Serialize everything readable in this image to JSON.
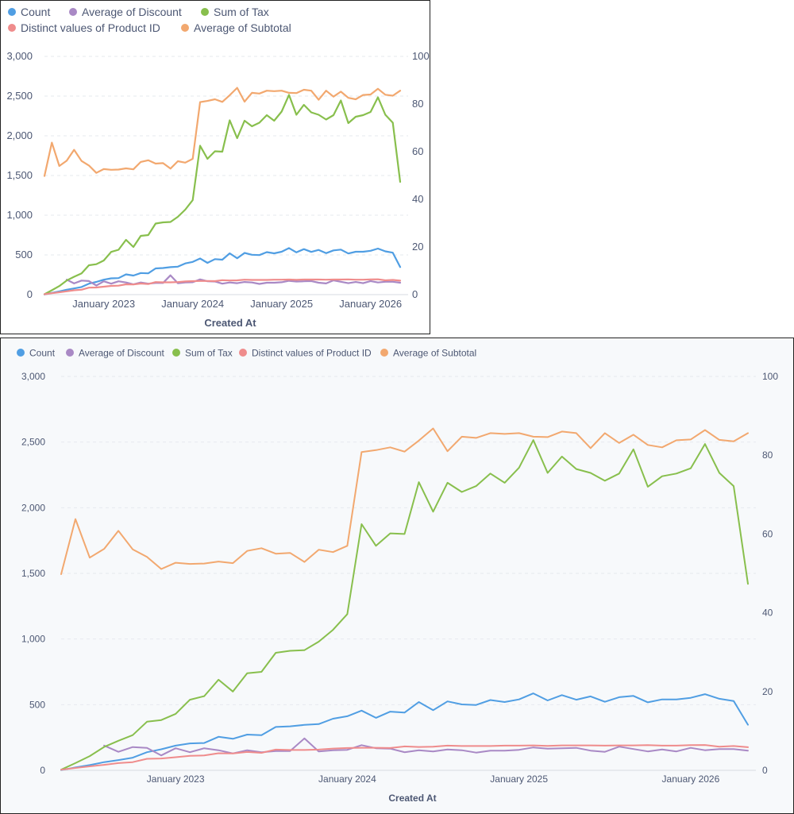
{
  "chart_data": [
    {
      "type": "line",
      "xlabel": "Created At",
      "x_tick_labels": [
        "January 2023",
        "January 2024",
        "January 2025",
        "January 2026"
      ],
      "y_left": {
        "ticks": [
          "0",
          "500",
          "1,000",
          "1,500",
          "2,000",
          "2,500",
          "3,000"
        ],
        "lim": [
          0,
          3000
        ]
      },
      "y_right": {
        "ticks": [
          "0",
          "20",
          "40",
          "60",
          "80",
          "100"
        ],
        "lim": [
          0,
          100
        ]
      },
      "x_range": [
        "2022-05",
        "2026-04"
      ],
      "grid": "horizontal dashed",
      "legend_position": "top-left",
      "series": [
        {
          "name": "Count",
          "axis": "left",
          "color": "#509ee3",
          "values": [
            2,
            22,
            40,
            62,
            78,
            96,
            138,
            160,
            188,
            205,
            208,
            255,
            240,
            272,
            268,
            330,
            335,
            346,
            352,
            393,
            412,
            455,
            400,
            447,
            440,
            520,
            458,
            525,
            502,
            498,
            535,
            520,
            540,
            586,
            532,
            573,
            538,
            563,
            522,
            557,
            567,
            518,
            540,
            540,
            552,
            580,
            545,
            528,
            347
          ]
        },
        {
          "name": "Average of Discount",
          "axis": "right",
          "color": "#a989c5",
          "values": [
            null,
            null,
            null,
            6.3,
            4.7,
            5.9,
            5.7,
            3.8,
            5.6,
            4.6,
            5.6,
            5.1,
            4.3,
            5.1,
            4.6,
            4.9,
            4.9,
            8.1,
            4.8,
            5.1,
            5.2,
            6.4,
            5.6,
            5.5,
            4.6,
            5.1,
            4.8,
            5.3,
            5.1,
            4.5,
            5.0,
            5.0,
            5.2,
            5.8,
            5.5,
            5.6,
            5.7,
            5.0,
            4.7,
            6.0,
            5.4,
            4.8,
            5.3,
            4.8,
            5.7,
            5.1,
            5.4,
            5.4,
            5.0
          ]
        },
        {
          "name": "Sum of Tax",
          "axis": "left",
          "color": "#88bf4d",
          "values": [
            5,
            55,
            108,
            178,
            225,
            268,
            370,
            383,
            430,
            538,
            565,
            690,
            600,
            740,
            750,
            895,
            910,
            915,
            980,
            1070,
            1190,
            1875,
            1710,
            1805,
            1800,
            2195,
            1970,
            2190,
            2120,
            2165,
            2260,
            2190,
            2305,
            2515,
            2265,
            2390,
            2295,
            2265,
            2205,
            2260,
            2445,
            2160,
            2240,
            2260,
            2300,
            2485,
            2265,
            2165,
            1420
          ]
        },
        {
          "name": "Distinct values of Product ID",
          "axis": "left",
          "color": "#ef8c8c",
          "values": [
            5,
            18,
            30,
            42,
            55,
            62,
            88,
            90,
            100,
            110,
            113,
            130,
            128,
            140,
            133,
            158,
            155,
            155,
            158,
            166,
            170,
            172,
            172,
            170,
            182,
            178,
            180,
            188,
            185,
            185,
            185,
            188,
            188,
            190,
            186,
            190,
            190,
            190,
            188,
            190,
            190,
            192,
            188,
            188,
            192,
            193,
            180,
            185,
            176
          ]
        },
        {
          "name": "Average of Subtotal",
          "axis": "right",
          "color": "#f2a86f",
          "values": [
            49.8,
            63.8,
            54.0,
            56.2,
            60.8,
            56.1,
            54.2,
            51.1,
            52.7,
            52.4,
            52.5,
            53.0,
            52.6,
            55.7,
            56.4,
            55.0,
            55.2,
            52.9,
            56.0,
            55.4,
            57.0,
            80.8,
            81.3,
            82.0,
            80.9,
            83.7,
            86.8,
            81.0,
            84.7,
            84.4,
            85.6,
            85.4,
            85.6,
            84.7,
            84.6,
            86.0,
            85.6,
            81.8,
            85.6,
            83.1,
            85.2,
            82.6,
            82.0,
            83.8,
            84.0,
            86.4,
            83.9,
            83.5,
            85.6
          ]
        }
      ]
    },
    {
      "type": "line",
      "xlabel": "Created At",
      "x_tick_labels": [
        "January 2023",
        "January 2024",
        "January 2025",
        "January 2026"
      ],
      "y_left": {
        "ticks": [
          "0",
          "500",
          "1,000",
          "1,500",
          "2,000",
          "2,500",
          "3,000"
        ],
        "lim": [
          0,
          3000
        ]
      },
      "y_right": {
        "ticks": [
          "0",
          "20",
          "40",
          "60",
          "80",
          "100"
        ],
        "lim": [
          0,
          100
        ]
      },
      "x_range": [
        "2022-05",
        "2026-04"
      ],
      "grid": "horizontal dashed",
      "legend_position": "top-left",
      "series_ref": "same data as chart 1"
    }
  ]
}
